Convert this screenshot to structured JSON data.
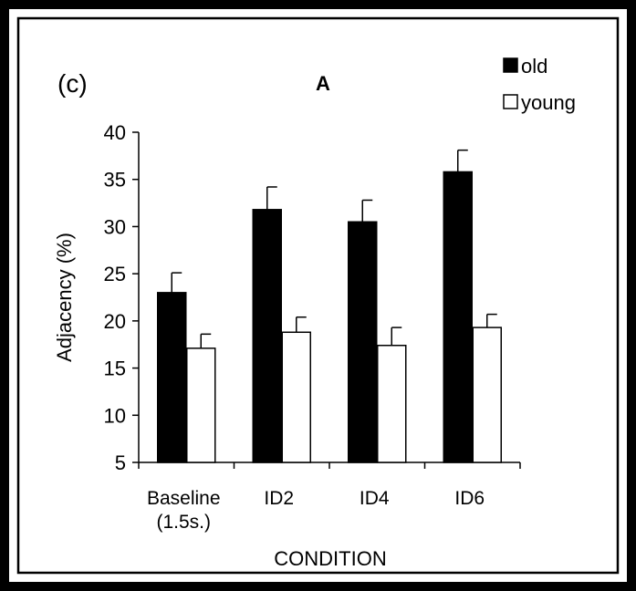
{
  "chart_data": {
    "type": "bar",
    "panel_label": "(c)",
    "title": "A",
    "xlabel": "CONDITION",
    "ylabel": "Adjacency (%)",
    "categories": [
      "Baseline\n(1.5s.)",
      "ID2",
      "ID4",
      "ID6"
    ],
    "ylim": [
      5,
      40
    ],
    "yticks": [
      "5",
      "10",
      "15",
      "20",
      "25",
      "30",
      "35",
      "40"
    ],
    "grid": false,
    "legend_position": "top-right",
    "series": [
      {
        "name": "old",
        "color": "#000000",
        "values": [
          23.0,
          31.8,
          30.5,
          35.8
        ],
        "error": [
          2.1,
          2.4,
          2.3,
          2.3
        ]
      },
      {
        "name": "young",
        "color": "#ffffff",
        "values": [
          17.1,
          18.8,
          17.4,
          19.3
        ],
        "error": [
          1.5,
          1.6,
          1.9,
          1.4
        ]
      }
    ]
  }
}
